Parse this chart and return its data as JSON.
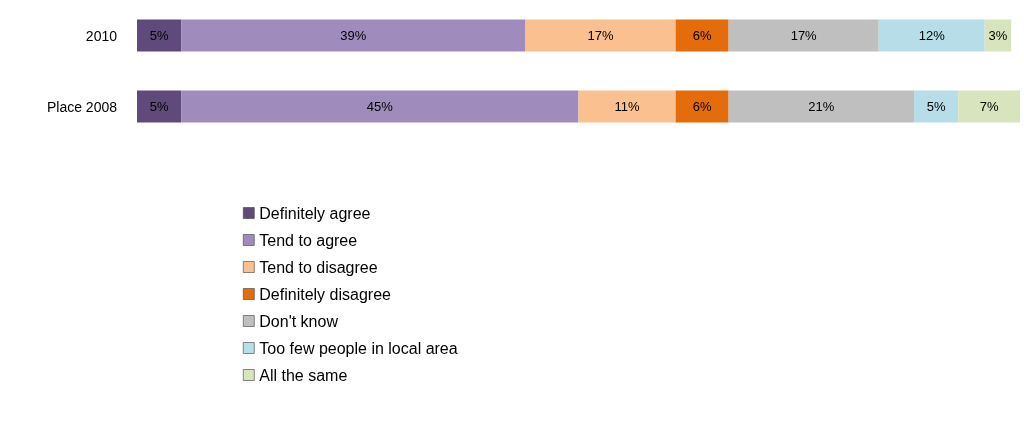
{
  "chart_data": {
    "type": "bar",
    "orientation": "horizontal",
    "stacked": true,
    "legend": "bottom",
    "categories": [
      "2010",
      "Place 2008"
    ],
    "series": [
      {
        "name": "Definitely agree",
        "color": "#604a7b",
        "values": [
          5,
          5
        ],
        "value_labels": [
          "5%",
          "5%"
        ]
      },
      {
        "name": "Tend to agree",
        "color": "#a08cbc",
        "values": [
          39,
          45
        ],
        "value_labels": [
          "39%",
          "45%"
        ]
      },
      {
        "name": "Tend to disagree",
        "color": "#fac090",
        "values": [
          17,
          11
        ],
        "value_labels": [
          "17%",
          "11%"
        ]
      },
      {
        "name": "Definitely disagree",
        "color": "#e46c0a",
        "values": [
          6,
          6
        ],
        "value_labels": [
          "6%",
          "6%"
        ]
      },
      {
        "name": "Don't know",
        "color": "#bfbfbf",
        "values": [
          17,
          21
        ],
        "value_labels": [
          "17%",
          "21%"
        ]
      },
      {
        "name": "Too few people in local area",
        "color": "#b7dee8",
        "values": [
          12,
          5
        ],
        "value_labels": [
          "12%",
          "5%"
        ]
      },
      {
        "name": "All the same",
        "color": "#d7e4bd",
        "values": [
          3,
          7
        ],
        "value_labels": [
          "3%",
          "7%"
        ]
      }
    ]
  }
}
